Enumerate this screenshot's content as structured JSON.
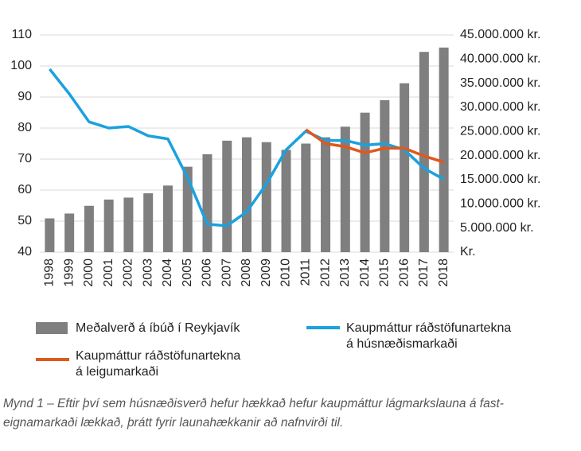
{
  "chart_data": {
    "type": "bar-line",
    "categories": [
      "1998",
      "1999",
      "2000",
      "2001",
      "2002",
      "2003",
      "2004",
      "2005",
      "2006",
      "2007",
      "2008",
      "2009",
      "2010",
      "2011",
      "2012",
      "2013",
      "2014",
      "2015",
      "2016",
      "2017",
      "2018"
    ],
    "series": [
      {
        "name": "Meðalverð á íbúð í Reykjavík",
        "type": "bar",
        "axis": "y2",
        "color": "#7f7f7f",
        "values": [
          7000000,
          8000000,
          9600000,
          10900000,
          11300000,
          12200000,
          13800000,
          17700000,
          20300000,
          23100000,
          23800000,
          22800000,
          21200000,
          22500000,
          23800000,
          26000000,
          28900000,
          31500000,
          35000000,
          41500000,
          42400000
        ]
      },
      {
        "name": "Kaupmáttur ráðstöfunartekna\ná húsnæðismarkaði",
        "type": "line",
        "axis": "y",
        "color": "#1ba1de",
        "values": [
          99,
          91,
          82,
          80,
          80.5,
          77.5,
          76.5,
          64,
          49,
          48.5,
          53,
          62,
          73,
          79,
          76,
          76,
          74.5,
          75,
          73,
          67,
          63.5
        ]
      },
      {
        "name": "Kaupmáttur ráðstöfunartekna\ná leigumarkaði",
        "type": "line",
        "axis": "y",
        "color": "#e0581c",
        "values": [
          null,
          null,
          null,
          null,
          null,
          null,
          null,
          null,
          null,
          null,
          null,
          null,
          null,
          79.5,
          75,
          74,
          72,
          73.5,
          73.5,
          71,
          69
        ]
      }
    ],
    "ylim": [
      40,
      110
    ],
    "yticks": [
      40,
      50,
      60,
      70,
      80,
      90,
      100,
      110
    ],
    "y2lim": [
      0,
      45000000
    ],
    "y2ticks": [
      {
        "value": 0,
        "label": "Kr."
      },
      {
        "value": 5000000,
        "label": "5.000.000 kr."
      },
      {
        "value": 10000000,
        "label": "10.000.000 kr."
      },
      {
        "value": 15000000,
        "label": "15.000.000 kr."
      },
      {
        "value": 20000000,
        "label": "20.000.000 kr."
      },
      {
        "value": 25000000,
        "label": "25.000.000 kr."
      },
      {
        "value": 30000000,
        "label": "30.000.000 kr."
      },
      {
        "value": 35000000,
        "label": "35.000.000 kr."
      },
      {
        "value": 40000000,
        "label": "40.000.000 kr."
      },
      {
        "value": 45000000,
        "label": "45.000.000 kr."
      }
    ],
    "grid": true,
    "caption": "Mynd 1 – Eftir því sem húsnæðisverð hefur hækkað hefur kaupmáttur lágmarkslauna á fast-\neignamarkaði lækkað, þrátt fyrir launahækkanir að nafnvirði til."
  }
}
